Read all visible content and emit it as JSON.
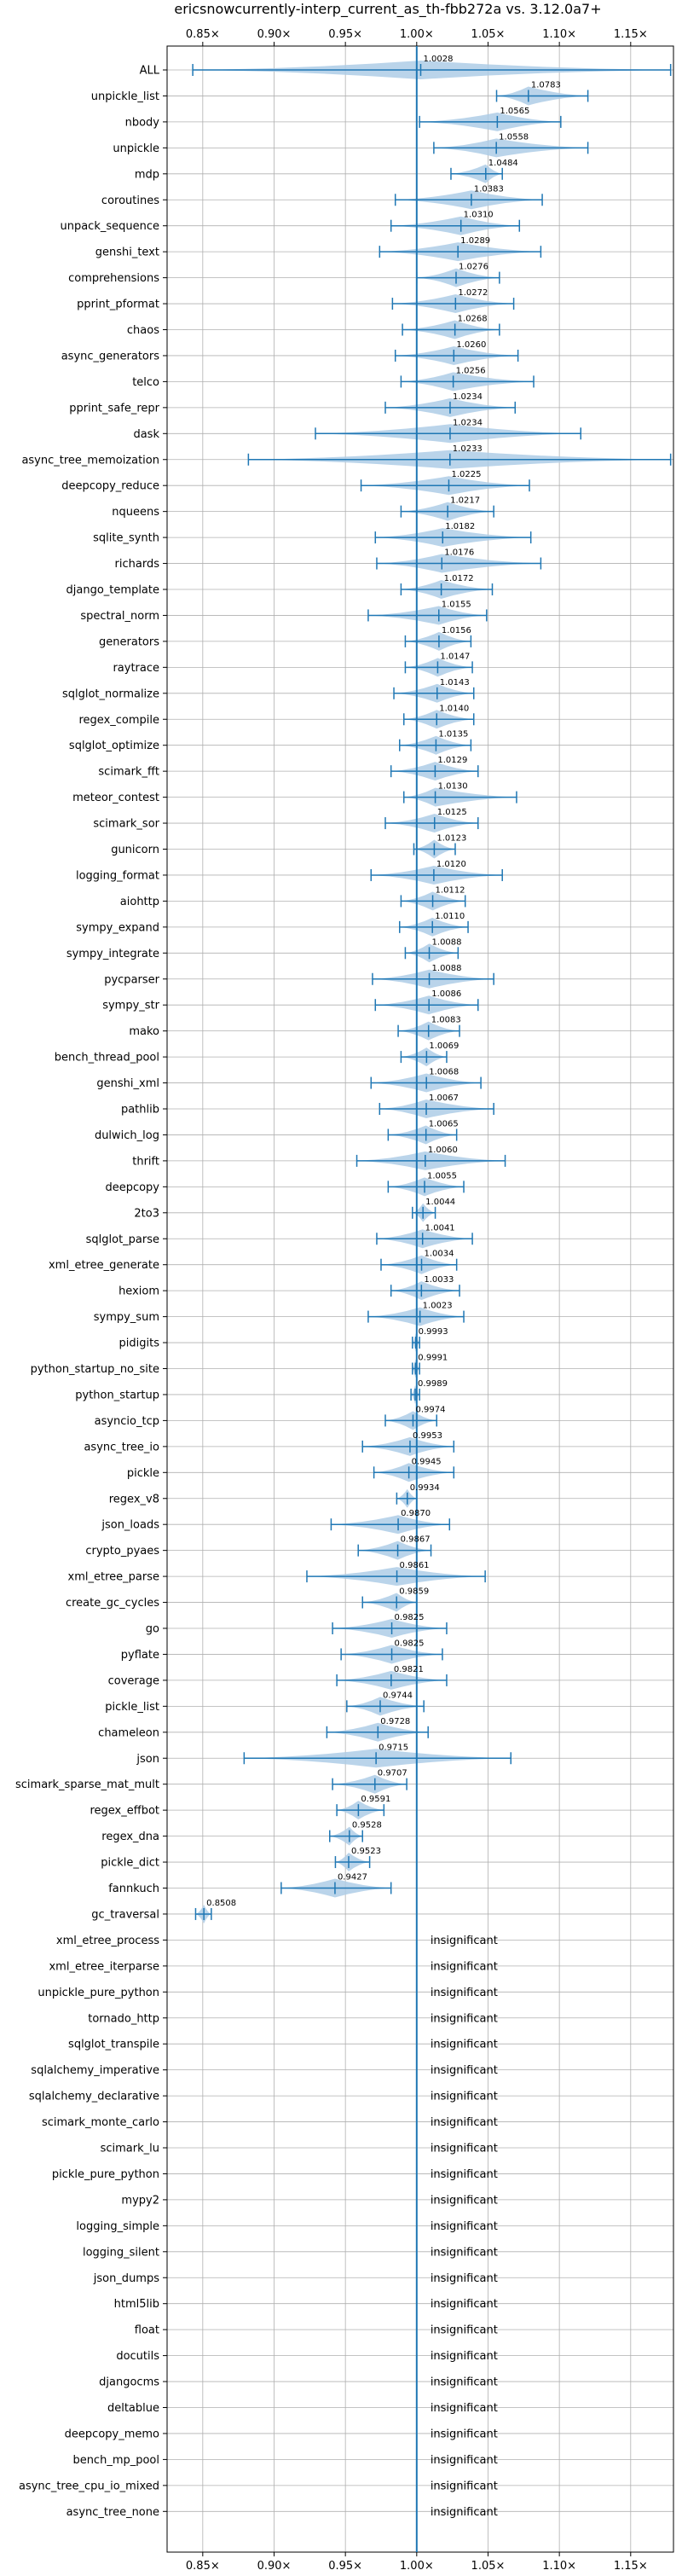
{
  "chart_data": {
    "type": "violin",
    "title": "ericsnowcurrently-interp_current_as_th-fbb272a vs. 3.12.0a7+",
    "xlabel": "",
    "ylabel": "",
    "xlim": [
      0.825,
      1.18
    ],
    "xticks": [
      0.85,
      0.9,
      0.95,
      1.0,
      1.05,
      1.1,
      1.15
    ],
    "xtick_labels": [
      "0.85×",
      "0.90×",
      "0.95×",
      "1.00×",
      "1.05×",
      "1.10×",
      "1.15×"
    ],
    "reference_line": 1.0,
    "grid": true,
    "colors": {
      "violin": "#aecde6",
      "line": "#1f77b4",
      "grid": "#b0b0b0"
    },
    "insignificant_text": "insignificant",
    "benchmarks": [
      {
        "name": "ALL",
        "value": "1.0028",
        "center": 1.0028,
        "lo": 0.843,
        "hi": 1.178,
        "sig": true
      },
      {
        "name": "unpickle_list",
        "value": "1.0783",
        "center": 1.0783,
        "lo": 1.056,
        "hi": 1.12,
        "sig": true
      },
      {
        "name": "nbody",
        "value": "1.0565",
        "center": 1.0565,
        "lo": 1.002,
        "hi": 1.101,
        "sig": true
      },
      {
        "name": "unpickle",
        "value": "1.0558",
        "center": 1.0558,
        "lo": 1.012,
        "hi": 1.12,
        "sig": true
      },
      {
        "name": "mdp",
        "value": "1.0484",
        "center": 1.0484,
        "lo": 1.024,
        "hi": 1.06,
        "sig": true
      },
      {
        "name": "coroutines",
        "value": "1.0383",
        "center": 1.0383,
        "lo": 0.985,
        "hi": 1.088,
        "sig": true
      },
      {
        "name": "unpack_sequence",
        "value": "1.0310",
        "center": 1.031,
        "lo": 0.982,
        "hi": 1.072,
        "sig": true
      },
      {
        "name": "genshi_text",
        "value": "1.0289",
        "center": 1.0289,
        "lo": 0.974,
        "hi": 1.087,
        "sig": true
      },
      {
        "name": "comprehensions",
        "value": "1.0276",
        "center": 1.0276,
        "lo": 1.0,
        "hi": 1.058,
        "sig": true
      },
      {
        "name": "pprint_pformat",
        "value": "1.0272",
        "center": 1.0272,
        "lo": 0.983,
        "hi": 1.068,
        "sig": true
      },
      {
        "name": "chaos",
        "value": "1.0268",
        "center": 1.0268,
        "lo": 0.99,
        "hi": 1.058,
        "sig": true
      },
      {
        "name": "async_generators",
        "value": "1.0260",
        "center": 1.026,
        "lo": 0.985,
        "hi": 1.071,
        "sig": true
      },
      {
        "name": "telco",
        "value": "1.0256",
        "center": 1.0256,
        "lo": 0.989,
        "hi": 1.082,
        "sig": true
      },
      {
        "name": "pprint_safe_repr",
        "value": "1.0234",
        "center": 1.0234,
        "lo": 0.978,
        "hi": 1.069,
        "sig": true
      },
      {
        "name": "dask",
        "value": "1.0234",
        "center": 1.0234,
        "lo": 0.929,
        "hi": 1.115,
        "sig": true
      },
      {
        "name": "async_tree_memoization",
        "value": "1.0233",
        "center": 1.0233,
        "lo": 0.882,
        "hi": 1.178,
        "sig": true
      },
      {
        "name": "deepcopy_reduce",
        "value": "1.0225",
        "center": 1.0225,
        "lo": 0.961,
        "hi": 1.079,
        "sig": true
      },
      {
        "name": "nqueens",
        "value": "1.0217",
        "center": 1.0217,
        "lo": 0.989,
        "hi": 1.054,
        "sig": true
      },
      {
        "name": "sqlite_synth",
        "value": "1.0182",
        "center": 1.0182,
        "lo": 0.971,
        "hi": 1.08,
        "sig": true
      },
      {
        "name": "richards",
        "value": "1.0176",
        "center": 1.0176,
        "lo": 0.972,
        "hi": 1.087,
        "sig": true
      },
      {
        "name": "django_template",
        "value": "1.0172",
        "center": 1.0172,
        "lo": 0.989,
        "hi": 1.053,
        "sig": true
      },
      {
        "name": "spectral_norm",
        "value": "1.0155",
        "center": 1.0155,
        "lo": 0.966,
        "hi": 1.049,
        "sig": true
      },
      {
        "name": "generators",
        "value": "1.0156",
        "center": 1.0156,
        "lo": 0.992,
        "hi": 1.038,
        "sig": true
      },
      {
        "name": "raytrace",
        "value": "1.0147",
        "center": 1.0147,
        "lo": 0.992,
        "hi": 1.039,
        "sig": true
      },
      {
        "name": "sqlglot_normalize",
        "value": "1.0143",
        "center": 1.0143,
        "lo": 0.984,
        "hi": 1.04,
        "sig": true
      },
      {
        "name": "regex_compile",
        "value": "1.0140",
        "center": 1.014,
        "lo": 0.991,
        "hi": 1.04,
        "sig": true
      },
      {
        "name": "sqlglot_optimize",
        "value": "1.0135",
        "center": 1.0135,
        "lo": 0.988,
        "hi": 1.038,
        "sig": true
      },
      {
        "name": "scimark_fft",
        "value": "1.0129",
        "center": 1.0129,
        "lo": 0.982,
        "hi": 1.043,
        "sig": true
      },
      {
        "name": "meteor_contest",
        "value": "1.0130",
        "center": 1.013,
        "lo": 0.991,
        "hi": 1.07,
        "sig": true
      },
      {
        "name": "scimark_sor",
        "value": "1.0125",
        "center": 1.0125,
        "lo": 0.978,
        "hi": 1.043,
        "sig": true
      },
      {
        "name": "gunicorn",
        "value": "1.0123",
        "center": 1.0123,
        "lo": 0.998,
        "hi": 1.027,
        "sig": true
      },
      {
        "name": "logging_format",
        "value": "1.0120",
        "center": 1.012,
        "lo": 0.968,
        "hi": 1.06,
        "sig": true
      },
      {
        "name": "aiohttp",
        "value": "1.0112",
        "center": 1.0112,
        "lo": 0.989,
        "hi": 1.034,
        "sig": true
      },
      {
        "name": "sympy_expand",
        "value": "1.0110",
        "center": 1.011,
        "lo": 0.988,
        "hi": 1.036,
        "sig": true
      },
      {
        "name": "sympy_integrate",
        "value": "1.0088",
        "center": 1.0088,
        "lo": 0.992,
        "hi": 1.029,
        "sig": true
      },
      {
        "name": "pycparser",
        "value": "1.0088",
        "center": 1.0088,
        "lo": 0.969,
        "hi": 1.054,
        "sig": true
      },
      {
        "name": "sympy_str",
        "value": "1.0086",
        "center": 1.0086,
        "lo": 0.971,
        "hi": 1.043,
        "sig": true
      },
      {
        "name": "mako",
        "value": "1.0083",
        "center": 1.0083,
        "lo": 0.987,
        "hi": 1.03,
        "sig": true
      },
      {
        "name": "bench_thread_pool",
        "value": "1.0069",
        "center": 1.0069,
        "lo": 0.989,
        "hi": 1.021,
        "sig": true
      },
      {
        "name": "genshi_xml",
        "value": "1.0068",
        "center": 1.0068,
        "lo": 0.968,
        "hi": 1.045,
        "sig": true
      },
      {
        "name": "pathlib",
        "value": "1.0067",
        "center": 1.0067,
        "lo": 0.974,
        "hi": 1.054,
        "sig": true
      },
      {
        "name": "dulwich_log",
        "value": "1.0065",
        "center": 1.0065,
        "lo": 0.98,
        "hi": 1.028,
        "sig": true
      },
      {
        "name": "thrift",
        "value": "1.0060",
        "center": 1.006,
        "lo": 0.958,
        "hi": 1.062,
        "sig": true
      },
      {
        "name": "deepcopy",
        "value": "1.0055",
        "center": 1.0055,
        "lo": 0.98,
        "hi": 1.033,
        "sig": true
      },
      {
        "name": "2to3",
        "value": "1.0044",
        "center": 1.0044,
        "lo": 0.997,
        "hi": 1.013,
        "sig": true
      },
      {
        "name": "sqlglot_parse",
        "value": "1.0041",
        "center": 1.0041,
        "lo": 0.972,
        "hi": 1.039,
        "sig": true
      },
      {
        "name": "xml_etree_generate",
        "value": "1.0034",
        "center": 1.0034,
        "lo": 0.975,
        "hi": 1.028,
        "sig": true
      },
      {
        "name": "hexiom",
        "value": "1.0033",
        "center": 1.0033,
        "lo": 0.982,
        "hi": 1.03,
        "sig": true
      },
      {
        "name": "sympy_sum",
        "value": "1.0023",
        "center": 1.0023,
        "lo": 0.966,
        "hi": 1.033,
        "sig": true
      },
      {
        "name": "pidigits",
        "value": "0.9993",
        "center": 0.9993,
        "lo": 0.997,
        "hi": 1.002,
        "sig": true
      },
      {
        "name": "python_startup_no_site",
        "value": "0.9991",
        "center": 0.9991,
        "lo": 0.997,
        "hi": 1.002,
        "sig": true
      },
      {
        "name": "python_startup",
        "value": "0.9989",
        "center": 0.9989,
        "lo": 0.996,
        "hi": 1.002,
        "sig": true
      },
      {
        "name": "asyncio_tcp",
        "value": "0.9974",
        "center": 0.9974,
        "lo": 0.978,
        "hi": 1.014,
        "sig": true
      },
      {
        "name": "async_tree_io",
        "value": "0.9953",
        "center": 0.9953,
        "lo": 0.962,
        "hi": 1.026,
        "sig": true
      },
      {
        "name": "pickle",
        "value": "0.9945",
        "center": 0.9945,
        "lo": 0.97,
        "hi": 1.026,
        "sig": true
      },
      {
        "name": "regex_v8",
        "value": "0.9934",
        "center": 0.9934,
        "lo": 0.986,
        "hi": 1.0,
        "sig": true
      },
      {
        "name": "json_loads",
        "value": "0.9870",
        "center": 0.987,
        "lo": 0.94,
        "hi": 1.023,
        "sig": true
      },
      {
        "name": "crypto_pyaes",
        "value": "0.9867",
        "center": 0.9867,
        "lo": 0.959,
        "hi": 1.01,
        "sig": true
      },
      {
        "name": "xml_etree_parse",
        "value": "0.9861",
        "center": 0.9861,
        "lo": 0.923,
        "hi": 1.048,
        "sig": true
      },
      {
        "name": "create_gc_cycles",
        "value": "0.9859",
        "center": 0.9859,
        "lo": 0.962,
        "hi": 1.0,
        "sig": true
      },
      {
        "name": "go",
        "value": "0.9825",
        "center": 0.9825,
        "lo": 0.941,
        "hi": 1.021,
        "sig": true
      },
      {
        "name": "pyflate",
        "value": "0.9825",
        "center": 0.9825,
        "lo": 0.947,
        "hi": 1.018,
        "sig": true
      },
      {
        "name": "coverage",
        "value": "0.9821",
        "center": 0.9821,
        "lo": 0.944,
        "hi": 1.021,
        "sig": true
      },
      {
        "name": "pickle_list",
        "value": "0.9744",
        "center": 0.9744,
        "lo": 0.951,
        "hi": 1.005,
        "sig": true
      },
      {
        "name": "chameleon",
        "value": "0.9728",
        "center": 0.9728,
        "lo": 0.937,
        "hi": 1.008,
        "sig": true
      },
      {
        "name": "json",
        "value": "0.9715",
        "center": 0.9715,
        "lo": 0.879,
        "hi": 1.066,
        "sig": true
      },
      {
        "name": "scimark_sparse_mat_mult",
        "value": "0.9707",
        "center": 0.9707,
        "lo": 0.941,
        "hi": 0.993,
        "sig": true
      },
      {
        "name": "regex_effbot",
        "value": "0.9591",
        "center": 0.9591,
        "lo": 0.944,
        "hi": 0.977,
        "sig": true
      },
      {
        "name": "regex_dna",
        "value": "0.9528",
        "center": 0.9528,
        "lo": 0.939,
        "hi": 0.962,
        "sig": true
      },
      {
        "name": "pickle_dict",
        "value": "0.9523",
        "center": 0.9523,
        "lo": 0.943,
        "hi": 0.967,
        "sig": true
      },
      {
        "name": "fannkuch",
        "value": "0.9427",
        "center": 0.9427,
        "lo": 0.905,
        "hi": 0.982,
        "sig": true
      },
      {
        "name": "gc_traversal",
        "value": "0.8508",
        "center": 0.8508,
        "lo": 0.845,
        "hi": 0.856,
        "sig": true
      },
      {
        "name": "xml_etree_process",
        "sig": false
      },
      {
        "name": "xml_etree_iterparse",
        "sig": false
      },
      {
        "name": "unpickle_pure_python",
        "sig": false
      },
      {
        "name": "tornado_http",
        "sig": false
      },
      {
        "name": "sqlglot_transpile",
        "sig": false
      },
      {
        "name": "sqlalchemy_imperative",
        "sig": false
      },
      {
        "name": "sqlalchemy_declarative",
        "sig": false
      },
      {
        "name": "scimark_monte_carlo",
        "sig": false
      },
      {
        "name": "scimark_lu",
        "sig": false
      },
      {
        "name": "pickle_pure_python",
        "sig": false
      },
      {
        "name": "mypy2",
        "sig": false
      },
      {
        "name": "logging_simple",
        "sig": false
      },
      {
        "name": "logging_silent",
        "sig": false
      },
      {
        "name": "json_dumps",
        "sig": false
      },
      {
        "name": "html5lib",
        "sig": false
      },
      {
        "name": "float",
        "sig": false
      },
      {
        "name": "docutils",
        "sig": false
      },
      {
        "name": "djangocms",
        "sig": false
      },
      {
        "name": "deltablue",
        "sig": false
      },
      {
        "name": "deepcopy_memo",
        "sig": false
      },
      {
        "name": "bench_mp_pool",
        "sig": false
      },
      {
        "name": "async_tree_cpu_io_mixed",
        "sig": false
      },
      {
        "name": "async_tree_none",
        "sig": false
      }
    ]
  }
}
